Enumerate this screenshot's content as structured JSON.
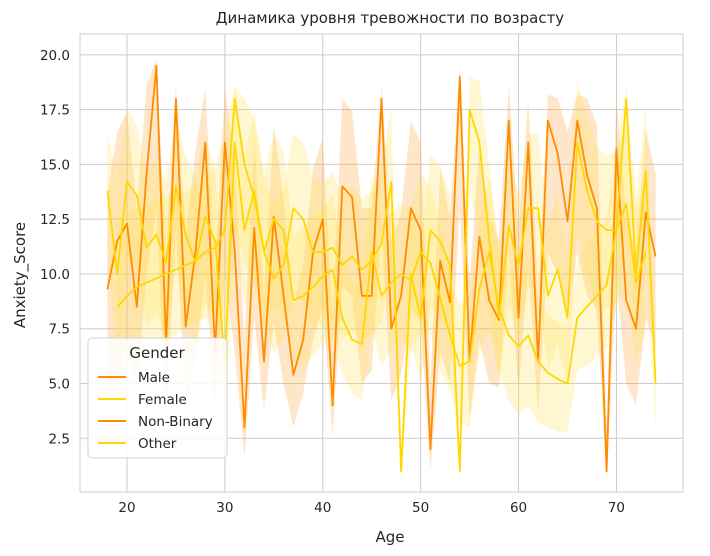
{
  "chart_data": {
    "type": "line",
    "title": "Динамика уровня тревожности по возрасту",
    "xlabel": "Age",
    "ylabel": "Anxiety_Score",
    "xlim": [
      15.2,
      76.8
    ],
    "ylim": [
      0.05,
      20.95
    ],
    "xticks": [
      20,
      30,
      40,
      50,
      60,
      70
    ],
    "yticks": [
      2.5,
      5.0,
      7.5,
      10.0,
      12.5,
      15.0,
      17.5,
      20.0
    ],
    "ytick_labels": [
      "2.5",
      "5.0",
      "7.5",
      "10.0",
      "12.5",
      "15.0",
      "17.5",
      "20.0"
    ],
    "xtick_labels": [
      "20",
      "30",
      "40",
      "50",
      "60",
      "70"
    ],
    "grid": true,
    "legend": {
      "title": "Gender",
      "position": "lower-left"
    },
    "background": "#ffffff",
    "grid_color": "#cccccc",
    "series": [
      {
        "name": "Male",
        "color": "#ff8c00",
        "band_color": "#ffa53a",
        "x": [
          18,
          19,
          20,
          21,
          22,
          23,
          24,
          25,
          26,
          27,
          28,
          29,
          30,
          31,
          32,
          33,
          34,
          35,
          36,
          37,
          38,
          39,
          40,
          41,
          42,
          43,
          44,
          45,
          46,
          47,
          48,
          49,
          50,
          51,
          52,
          53,
          54,
          55,
          56,
          57,
          58,
          59,
          60,
          61,
          62,
          63,
          64,
          65,
          66,
          67,
          68,
          69,
          70,
          71,
          72,
          73,
          74
        ],
        "y": [
          9.3,
          11.5,
          12.3,
          8.5,
          14.6,
          19.5,
          6.8,
          18.0,
          7.6,
          11.0,
          16.0,
          6.5,
          16.0,
          11.1,
          3.0,
          12.1,
          6.0,
          12.6,
          9.0,
          5.4,
          7.0,
          11.0,
          12.5,
          4.0,
          14.0,
          13.5,
          9.0,
          9.0,
          18.0,
          7.5,
          9.0,
          13.0,
          12.0,
          2.0,
          10.6,
          8.7,
          19.0,
          6.0,
          11.7,
          8.8,
          7.9,
          17.0,
          8.0,
          16.0,
          6.0,
          17.0,
          15.5,
          12.4,
          17.0,
          14.5,
          13.0,
          1.0,
          15.7,
          8.8,
          7.5,
          12.8,
          10.8
        ],
        "band_lo": [
          4.8,
          5.0,
          7.0,
          4.6,
          10.0,
          13.0,
          3.4,
          12.0,
          4.0,
          6.2,
          10.0,
          3.6,
          10.0,
          6.5,
          1.6,
          8.0,
          3.8,
          7.8,
          5.0,
          3.0,
          4.6,
          7.0,
          8.5,
          2.6,
          9.4,
          9.0,
          5.0,
          5.6,
          12.0,
          4.2,
          5.4,
          8.4,
          7.8,
          1.0,
          6.4,
          5.0,
          13.0,
          3.4,
          7.0,
          5.0,
          4.8,
          11.0,
          4.6,
          10.4,
          3.6,
          11.0,
          10.0,
          7.8,
          11.0,
          9.0,
          8.4,
          0.6,
          10.0,
          5.0,
          4.0,
          8.0,
          6.6
        ],
        "band_hi": [
          13.6,
          16.5,
          17.4,
          13.0,
          18.6,
          19.8,
          11.0,
          18.6,
          11.8,
          15.6,
          18.5,
          10.0,
          18.6,
          15.2,
          7.0,
          16.0,
          9.0,
          16.8,
          13.4,
          8.6,
          10.4,
          14.8,
          16.2,
          8.0,
          18.0,
          17.4,
          13.0,
          13.0,
          18.6,
          11.6,
          12.8,
          17.0,
          16.0,
          5.0,
          14.8,
          12.6,
          19.5,
          9.6,
          16.0,
          12.6,
          11.6,
          18.6,
          12.0,
          18.0,
          9.0,
          18.2,
          18.0,
          16.5,
          18.2,
          18.0,
          16.8,
          3.0,
          18.0,
          12.6,
          11.0,
          16.6,
          14.6
        ]
      },
      {
        "name": "Female",
        "color": "#ffd700",
        "band_color": "#ffe15a",
        "x": [
          19,
          20,
          21,
          22,
          23,
          24,
          25,
          26,
          27,
          28,
          29,
          30,
          31,
          32,
          33,
          34,
          35,
          36,
          37,
          38,
          39,
          40,
          41,
          42,
          43,
          44,
          45,
          46,
          47,
          48,
          49,
          50,
          51,
          52,
          53,
          54,
          55,
          56,
          57,
          58,
          59,
          60,
          61,
          62,
          63,
          64,
          65,
          66,
          67,
          68,
          69,
          70,
          71,
          72,
          73,
          74
        ],
        "y": [
          8.5,
          9.0,
          9.4,
          9.6,
          9.8,
          10.0,
          10.2,
          10.4,
          10.6,
          11.0,
          11.2,
          12.0,
          18.0,
          15.0,
          13.5,
          11.0,
          12.5,
          12.0,
          8.8,
          9.0,
          9.4,
          9.9,
          10.2,
          8.0,
          7.0,
          6.8,
          11.0,
          9.0,
          9.6,
          10.0,
          9.7,
          11.0,
          10.5,
          8.9,
          7.2,
          5.8,
          6.0,
          9.3,
          11.0,
          8.4,
          7.2,
          6.7,
          7.2,
          6.0,
          5.5,
          5.2,
          5.0,
          8.0,
          8.5,
          9.0,
          9.5,
          12.0,
          18.0,
          10.0,
          14.7,
          5.0
        ],
        "band_lo": [
          5.0,
          5.6,
          6.4,
          6.8,
          7.0,
          7.0,
          7.2,
          7.6,
          7.8,
          8.0,
          7.6,
          7.8,
          12.0,
          10.6,
          9.4,
          7.6,
          8.4,
          8.4,
          6.0,
          5.8,
          6.2,
          6.8,
          7.0,
          5.4,
          4.6,
          4.2,
          7.6,
          5.8,
          6.6,
          7.0,
          6.4,
          7.4,
          7.2,
          5.6,
          4.6,
          3.2,
          3.0,
          6.4,
          7.4,
          5.6,
          4.2,
          3.6,
          4.0,
          3.2,
          3.0,
          2.8,
          2.8,
          5.6,
          5.8,
          6.2,
          6.6,
          8.4,
          12.0,
          7.0,
          10.4,
          2.8
        ],
        "band_hi": [
          12.6,
          12.8,
          13.0,
          13.2,
          13.4,
          13.6,
          13.6,
          13.8,
          14.0,
          14.4,
          14.8,
          16.6,
          18.6,
          18.0,
          17.0,
          14.6,
          16.4,
          15.6,
          11.8,
          12.2,
          12.6,
          13.0,
          13.6,
          10.8,
          9.6,
          9.4,
          14.6,
          12.2,
          12.8,
          13.2,
          13.0,
          14.6,
          14.0,
          12.2,
          9.8,
          8.6,
          9.0,
          12.4,
          14.4,
          11.2,
          10.4,
          10.0,
          10.4,
          9.0,
          8.2,
          7.8,
          7.6,
          10.6,
          11.4,
          12.0,
          12.6,
          15.6,
          18.6,
          13.4,
          17.6,
          7.4
        ]
      },
      {
        "name": "Non-Binary",
        "color": "#ff8c00",
        "band_color": "#ffa53a",
        "x": [],
        "y": [],
        "band_lo": [],
        "band_hi": []
      },
      {
        "name": "Other",
        "color": "#ffd700",
        "band_color": "#ffe15a",
        "x": [
          18,
          19,
          20,
          21,
          22,
          23,
          24,
          25,
          26,
          27,
          28,
          29,
          30,
          31,
          32,
          33,
          34,
          35,
          36,
          37,
          38,
          39,
          40,
          41,
          42,
          43,
          44,
          45,
          46,
          47,
          48,
          49,
          50,
          51,
          52,
          53,
          54,
          55,
          56,
          57,
          58,
          59,
          60,
          61,
          62,
          63,
          64,
          65,
          66,
          67,
          68,
          69,
          70,
          71,
          72,
          73
        ],
        "y": [
          13.8,
          10.0,
          14.2,
          13.6,
          11.2,
          11.8,
          10.5,
          14.0,
          11.8,
          10.5,
          12.6,
          11.5,
          5.8,
          16.0,
          12.0,
          13.8,
          11.0,
          9.8,
          10.4,
          13.0,
          12.5,
          11.0,
          11.0,
          11.2,
          10.4,
          10.8,
          10.2,
          10.6,
          11.4,
          14.2,
          1.0,
          10.0,
          8.0,
          12.0,
          11.5,
          10.4,
          1.0,
          17.5,
          16.0,
          11.6,
          8.0,
          12.2,
          10.4,
          13.0,
          13.0,
          9.0,
          10.2,
          8.0,
          16.0,
          13.8,
          12.4,
          12.0,
          12.0,
          13.2,
          9.6,
          11.0
        ],
        "band_lo": [
          11.0,
          5.6,
          10.6,
          10.2,
          7.6,
          8.2,
          6.8,
          10.4,
          8.0,
          6.6,
          8.6,
          8.0,
          3.0,
          12.0,
          8.4,
          10.0,
          7.6,
          6.4,
          7.0,
          9.0,
          8.8,
          7.6,
          7.8,
          7.8,
          7.0,
          7.4,
          7.0,
          7.2,
          7.8,
          10.4,
          0.5,
          6.8,
          5.0,
          8.4,
          8.0,
          7.2,
          0.5,
          13.6,
          12.0,
          8.0,
          5.0,
          8.6,
          7.0,
          9.4,
          9.4,
          5.6,
          6.8,
          5.0,
          12.0,
          10.0,
          8.6,
          8.4,
          8.4,
          9.4,
          6.0,
          7.4
        ],
        "band_hi": [
          16.4,
          14.4,
          17.6,
          16.8,
          14.6,
          15.2,
          14.2,
          17.2,
          15.4,
          14.4,
          16.2,
          14.8,
          8.6,
          18.6,
          15.4,
          17.4,
          14.4,
          13.2,
          13.8,
          16.4,
          16.0,
          14.4,
          14.2,
          14.6,
          13.6,
          14.0,
          13.4,
          13.8,
          14.8,
          17.6,
          1.5,
          13.2,
          11.0,
          15.4,
          15.0,
          13.6,
          1.5,
          19.0,
          18.8,
          15.0,
          11.0,
          15.6,
          13.6,
          16.4,
          16.4,
          12.2,
          13.6,
          11.0,
          18.8,
          17.2,
          15.8,
          15.4,
          15.6,
          16.8,
          13.0,
          14.4
        ]
      }
    ]
  }
}
